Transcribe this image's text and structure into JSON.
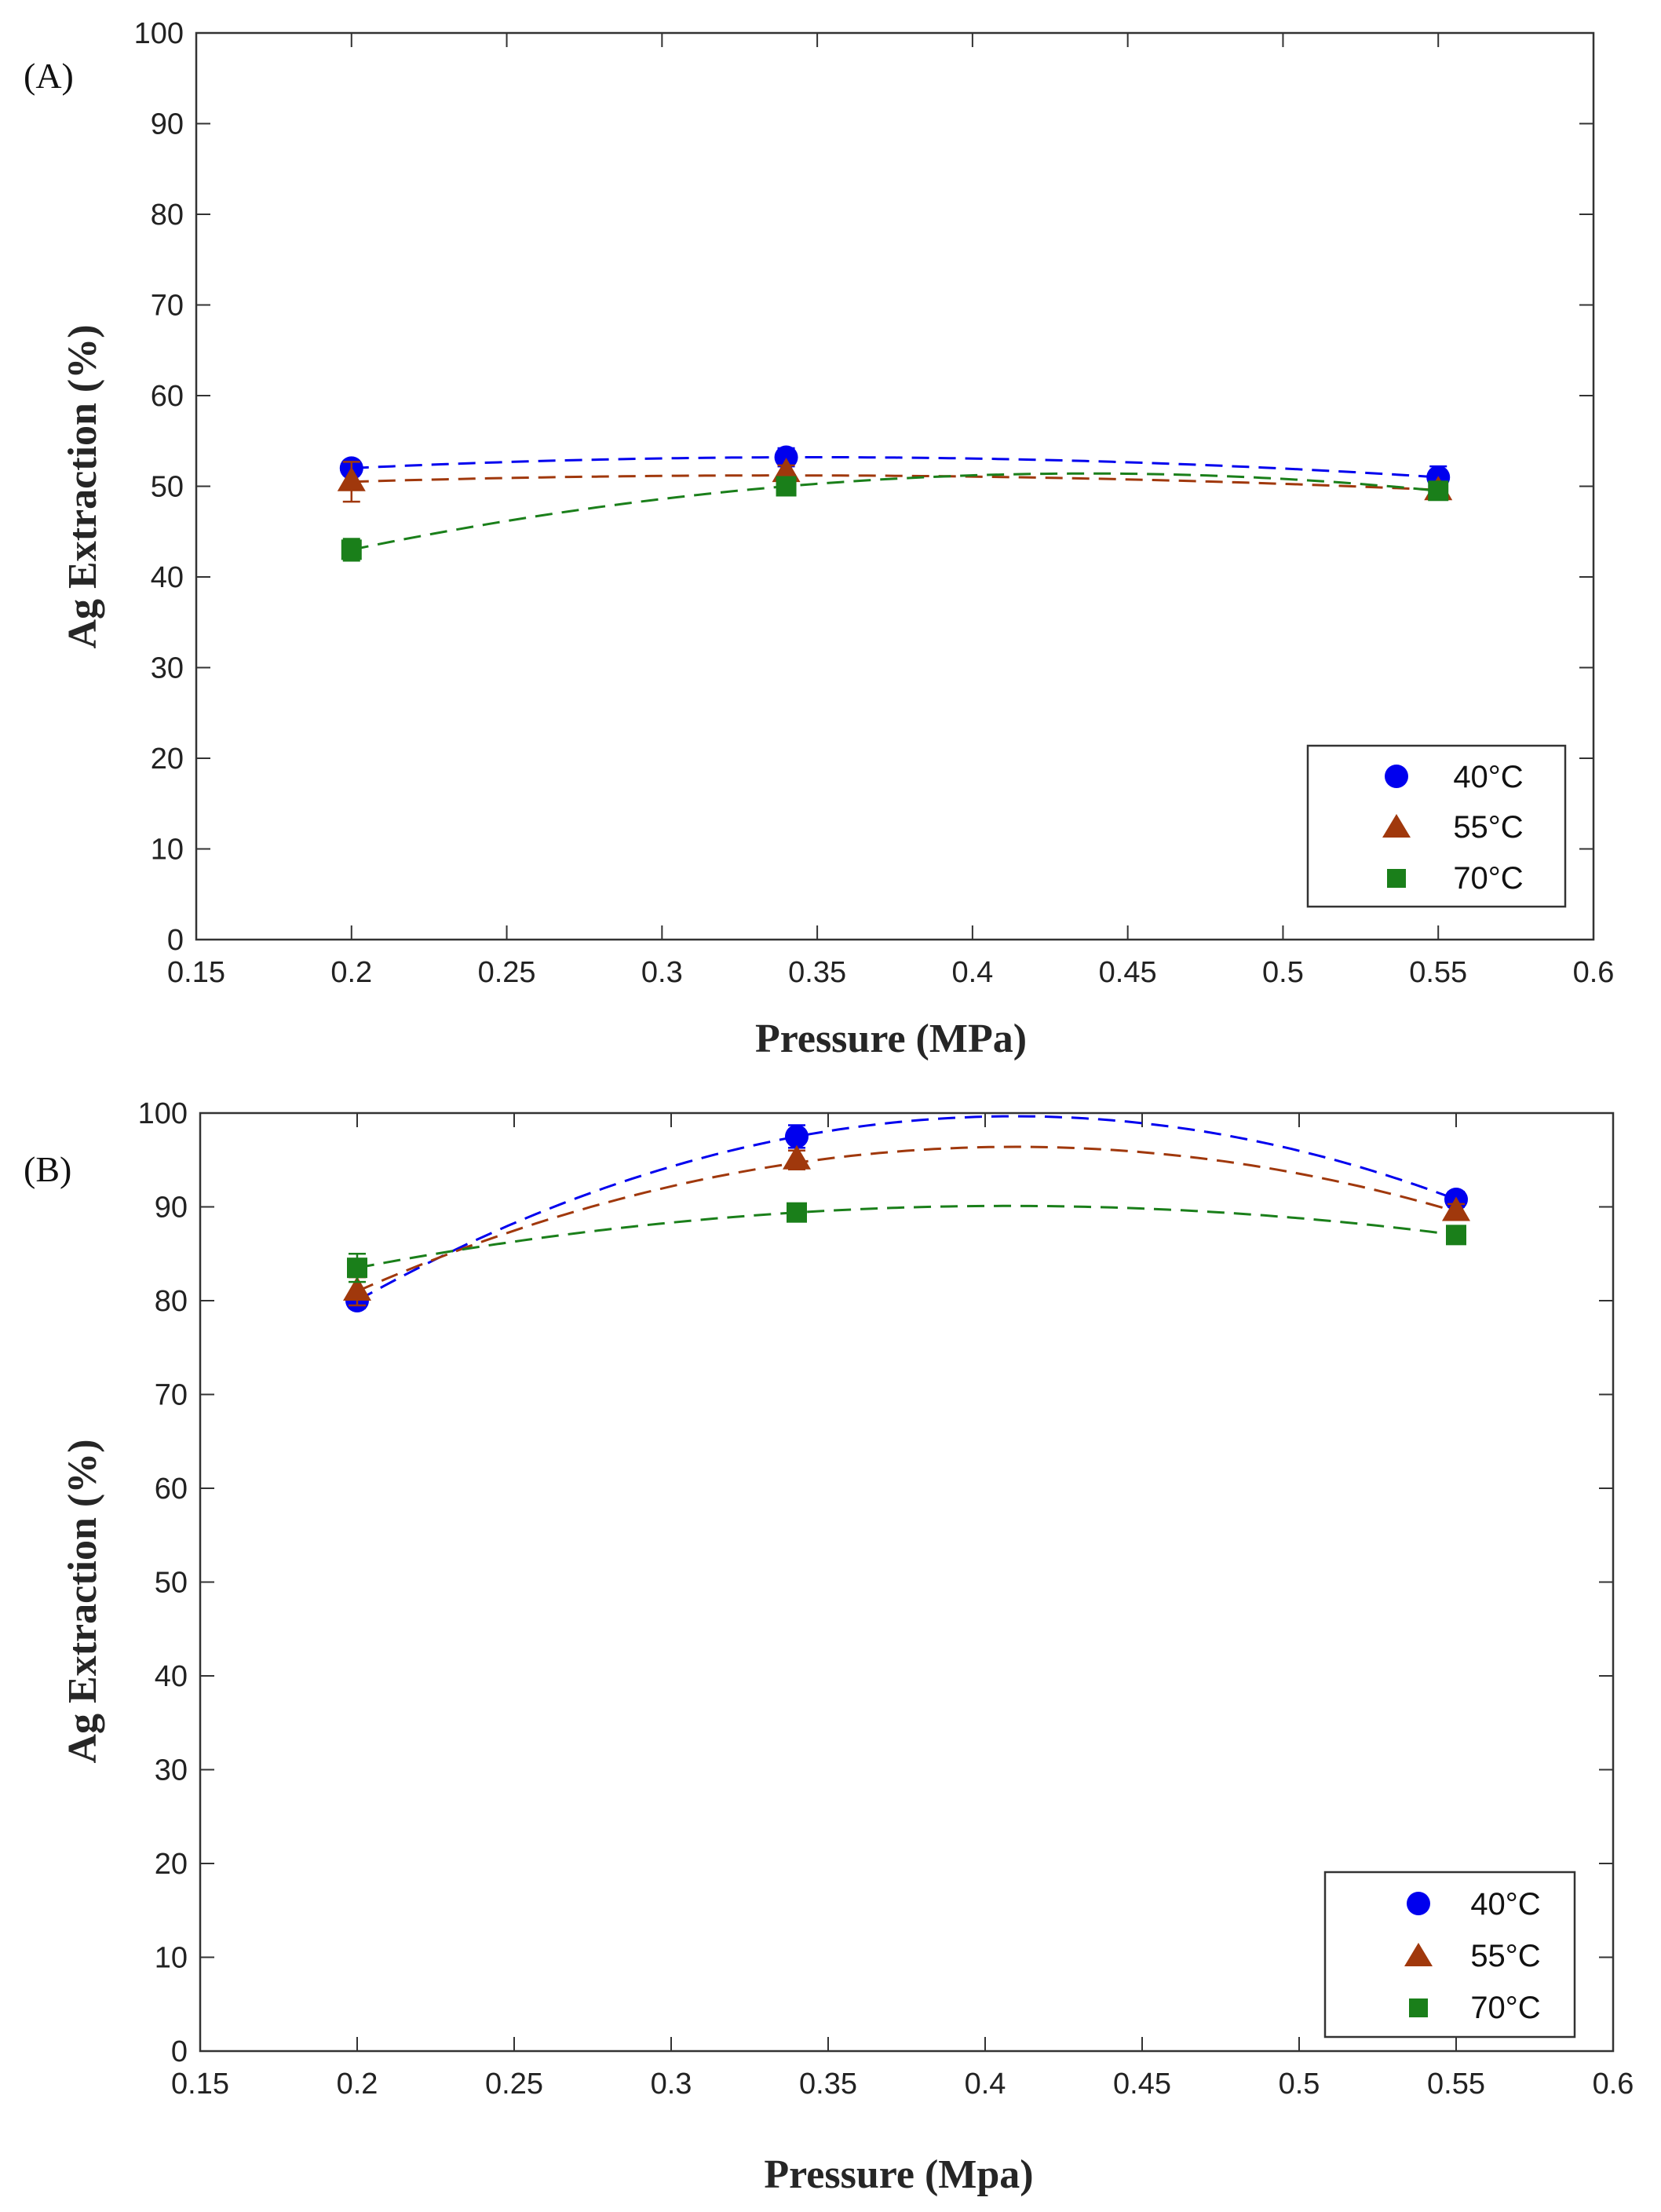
{
  "chart_data": [
    {
      "type": "scatter",
      "panel_label": "(A)",
      "xlabel": "Pressure (MPa)",
      "ylabel": "Ag Extraction (%)",
      "xlim": [
        0.15,
        0.6
      ],
      "ylim": [
        0,
        100
      ],
      "xticks": [
        "0.15",
        "0.2",
        "0.25",
        "0.3",
        "0.35",
        "0.4",
        "0.45",
        "0.5",
        "0.55",
        "0.6"
      ],
      "yticks": [
        "0",
        "10",
        "20",
        "30",
        "40",
        "50",
        "60",
        "70",
        "80",
        "90",
        "100"
      ],
      "x": [
        0.2,
        0.34,
        0.55
      ],
      "series": [
        {
          "name": "40°C",
          "marker": "circle",
          "color": "#0000ee",
          "values": [
            52.0,
            53.2,
            51.0
          ],
          "errors": [
            0.8,
            1.0,
            1.2
          ],
          "fit": [
            52.0,
            53.2,
            51.0
          ]
        },
        {
          "name": "55°C",
          "marker": "triangle",
          "color": "#a0380c",
          "values": [
            50.5,
            51.5,
            49.5
          ],
          "errors": [
            2.2,
            0.8,
            0.6
          ],
          "fit": [
            50.5,
            51.2,
            49.6
          ]
        },
        {
          "name": "70°C",
          "marker": "square",
          "color": "#1a7f1a",
          "values": [
            43.0,
            50.0,
            49.5
          ],
          "errors": [
            1.2,
            0.6,
            0.6
          ],
          "fit": [
            43.0,
            50.0,
            49.5
          ]
        }
      ],
      "legend_position": "bottom-right",
      "grid": false
    },
    {
      "type": "scatter",
      "panel_label": "(B)",
      "xlabel": "Pressure (Mpa)",
      "ylabel": "Ag Extraction (%)",
      "xlim": [
        0.15,
        0.6
      ],
      "ylim": [
        0,
        100
      ],
      "xticks": [
        "0.15",
        "0.2",
        "0.25",
        "0.3",
        "0.35",
        "0.4",
        "0.45",
        "0.5",
        "0.55",
        "0.6"
      ],
      "yticks": [
        "0",
        "10",
        "20",
        "30",
        "40",
        "50",
        "60",
        "70",
        "80",
        "90",
        "100"
      ],
      "x": [
        0.2,
        0.34,
        0.55
      ],
      "series": [
        {
          "name": "40°C",
          "marker": "circle",
          "color": "#0000ee",
          "values": [
            80.0,
            97.5,
            90.8
          ],
          "errors": [
            0.8,
            1.2,
            0.8
          ],
          "fit": [
            80.0,
            97.5,
            90.8
          ]
        },
        {
          "name": "55°C",
          "marker": "triangle",
          "color": "#a0380c",
          "values": [
            81.0,
            95.0,
            89.5
          ],
          "errors": [
            1.5,
            1.0,
            0.8
          ],
          "fit": [
            81.0,
            94.7,
            89.5
          ]
        },
        {
          "name": "70°C",
          "marker": "square",
          "color": "#1a7f1a",
          "values": [
            83.5,
            89.4,
            87.0
          ],
          "errors": [
            1.5,
            0.5,
            0.6
          ],
          "fit": [
            83.5,
            89.4,
            87.0
          ]
        }
      ],
      "legend_position": "bottom-right",
      "grid": false
    }
  ]
}
